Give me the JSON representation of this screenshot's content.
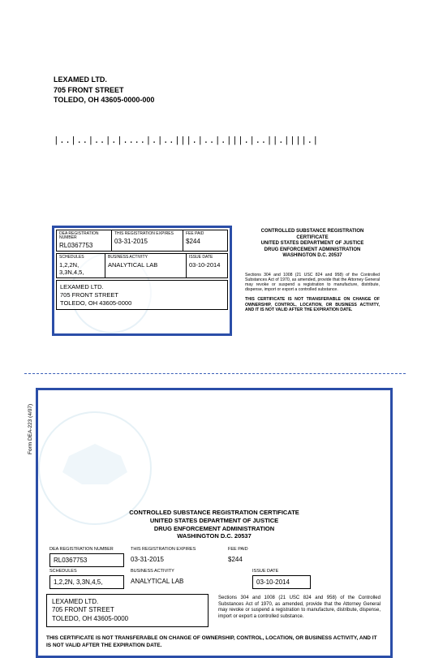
{
  "mailing_address": {
    "name": "LEXAMED LTD.",
    "street": "705 FRONT STREET",
    "city_line": "TOLEDO, OH  43605-0000-000"
  },
  "barcode": "|..|..|..|.|....|.|..|||.|..|.|||.|..||.||||.|",
  "certificate": {
    "reg_number_label": "DEA REGISTRATION NUMBER",
    "reg_number": "RL0367753",
    "expires_label": "THIS REGISTRATION EXPIRES",
    "expires": "03-31-2015",
    "fee_label": "FEE PAID",
    "fee": "$244",
    "schedules_label": "SCHEDULES",
    "schedules": "1,2,2N, 3,3N,4,5,",
    "activity_label": "BUSINESS ACTIVITY",
    "activity": "ANALYTICAL LAB",
    "issue_label": "ISSUE DATE",
    "issue": "03-10-2014",
    "holder_name": "LEXAMED LTD.",
    "holder_street": "705 FRONT STREET",
    "holder_city": "TOLEDO, OH 43605-0000",
    "title_l1": "CONTROLLED SUBSTANCE REGISTRATION CERTIFICATE",
    "title_l2": "UNITED STATES DEPARTMENT OF JUSTICE",
    "title_l3": "DRUG ENFORCEMENT ADMINISTRATION",
    "title_l4": "WASHINGTON D.C. 20537",
    "legal_para": "Sections 304 and 1008 (21 USC 824 and 958) of the Controlled Substances Act of 1970, as amended, provide that the Attorney General may revoke or suspend a registration to manufacture, distribute, dispense, import or export a controlled substance.",
    "transfer_note": "THIS CERTIFICATE IS NOT TRANSFERABLE ON CHANGE OF OWNERSHIP, CONTROL, LOCATION, OR BUSINESS ACTIVITY, AND IT IS NOT VALID AFTER THE EXPIRATION DATE."
  },
  "form_label": "Form DEA-223 (4/07)",
  "colors": {
    "border": "#2b4ea8",
    "watermark": "#b8d8e8"
  }
}
